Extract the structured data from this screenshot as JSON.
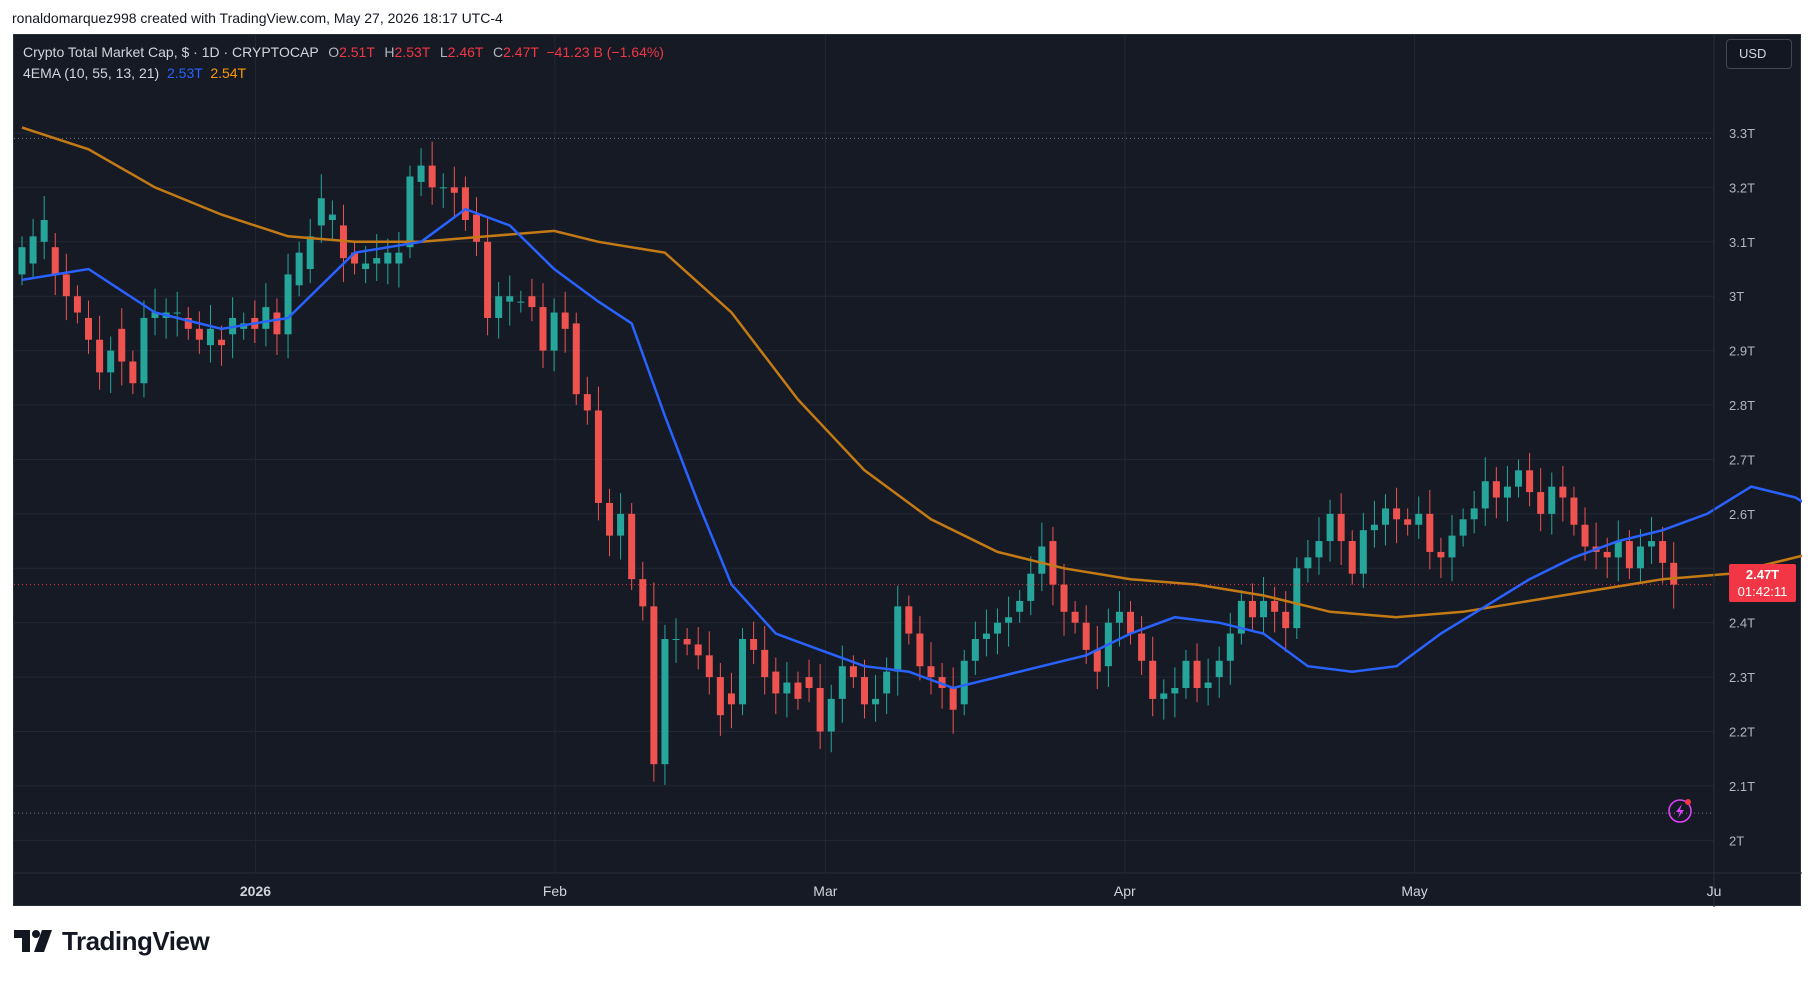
{
  "caption": "ronaldomarquez998 created with TradingView.com, May 27, 2026 18:17 UTC-4",
  "legend": {
    "symbol": "Crypto Total Market Cap, $ · 1D · CRYPTOCAP",
    "open_label": "O",
    "open": "2.51T",
    "high_label": "H",
    "high": "2.53T",
    "low_label": "L",
    "low": "2.46T",
    "close_label": "C",
    "close": "2.47T",
    "change": "−41.23 B (−1.64%)",
    "indicator": "4EMA (10, 55, 13, 21)",
    "ema_fast": "2.53T",
    "ema_slow": "2.54T"
  },
  "currency_button": "USD",
  "price_tag": {
    "value": "2.47T",
    "countdown": "01:42:11"
  },
  "brand": {
    "name": "TradingView"
  },
  "colors": {
    "background": "#161a25",
    "up": "#26a69a",
    "down": "#ef5350",
    "ema_fast": "#2962ff",
    "ema_slow": "#c47a14",
    "grid": "#232733"
  },
  "chart_data": {
    "type": "candlestick",
    "ylim": [
      1.94,
      3.48
    ],
    "y_ticks": [
      2.0,
      2.1,
      2.2,
      2.3,
      2.4,
      2.5,
      2.6,
      2.7,
      2.8,
      2.9,
      3.0,
      3.1,
      3.2,
      3.3
    ],
    "y_tick_labels": [
      "2T",
      "2.1T",
      "2.2T",
      "2.3T",
      "2.4T",
      "2.5T",
      "2.6T",
      "2.7T",
      "2.8T",
      "2.9T",
      "3T",
      "3.1T",
      "3.2T",
      "3.3T"
    ],
    "x_range": [
      "2025-12-07",
      "2026-06-01"
    ],
    "x_ticks": [
      {
        "date": "2026-01-01",
        "label": "2026"
      },
      {
        "date": "2026-02-01",
        "label": "Feb"
      },
      {
        "date": "2026-03-01",
        "label": "Mar"
      },
      {
        "date": "2026-04-01",
        "label": "Apr"
      },
      {
        "date": "2026-05-01",
        "label": "May"
      },
      {
        "date": "2026-06-01",
        "label": "Ju"
      }
    ],
    "last_price": 2.47,
    "hlines": [
      3.29,
      2.05
    ],
    "closes": [
      [
        3.04,
        3.09
      ],
      [
        3.06,
        3.11
      ],
      [
        3.1,
        3.14
      ],
      [
        3.09,
        3.04
      ],
      [
        3.04,
        3.0
      ],
      [
        3.0,
        2.97
      ],
      [
        2.96,
        2.92
      ],
      [
        2.92,
        2.86
      ],
      [
        2.86,
        2.9
      ],
      [
        2.94,
        2.88
      ],
      [
        2.88,
        2.84
      ],
      [
        2.84,
        2.96
      ],
      [
        2.96,
        2.97
      ],
      [
        2.96,
        2.97
      ],
      [
        2.97,
        2.97
      ],
      [
        2.96,
        2.94
      ],
      [
        2.94,
        2.92
      ],
      [
        2.91,
        2.94
      ],
      [
        2.92,
        2.91
      ],
      [
        2.93,
        2.96
      ],
      [
        2.94,
        2.95
      ],
      [
        2.96,
        2.94
      ],
      [
        2.94,
        2.98
      ],
      [
        2.97,
        2.93
      ],
      [
        2.93,
        3.04
      ],
      [
        3.02,
        3.08
      ],
      [
        3.05,
        3.11
      ],
      [
        3.13,
        3.18
      ],
      [
        3.14,
        3.15
      ],
      [
        3.13,
        3.07
      ],
      [
        3.08,
        3.06
      ],
      [
        3.05,
        3.06
      ],
      [
        3.06,
        3.07
      ],
      [
        3.06,
        3.08
      ],
      [
        3.06,
        3.08
      ],
      [
        3.09,
        3.22
      ],
      [
        3.21,
        3.24
      ],
      [
        3.24,
        3.2
      ],
      [
        3.2,
        3.2
      ],
      [
        3.2,
        3.19
      ],
      [
        3.2,
        3.14
      ],
      [
        3.15,
        3.1
      ],
      [
        3.1,
        2.96
      ],
      [
        2.96,
        3.0
      ],
      [
        2.99,
        3.0
      ],
      [
        2.99,
        2.99
      ],
      [
        3.0,
        2.98
      ],
      [
        2.98,
        2.9
      ],
      [
        2.9,
        2.97
      ],
      [
        2.97,
        2.94
      ],
      [
        2.95,
        2.82
      ],
      [
        2.82,
        2.79
      ],
      [
        2.79,
        2.62
      ],
      [
        2.62,
        2.56
      ],
      [
        2.56,
        2.6
      ],
      [
        2.6,
        2.48
      ],
      [
        2.48,
        2.43
      ],
      [
        2.43,
        2.14
      ],
      [
        2.14,
        2.37
      ],
      [
        2.37,
        2.37
      ],
      [
        2.37,
        2.36
      ],
      [
        2.36,
        2.34
      ],
      [
        2.34,
        2.3
      ],
      [
        2.3,
        2.23
      ],
      [
        2.27,
        2.25
      ],
      [
        2.25,
        2.37
      ],
      [
        2.37,
        2.35
      ],
      [
        2.35,
        2.3
      ],
      [
        2.31,
        2.27
      ],
      [
        2.27,
        2.29
      ],
      [
        2.29,
        2.26
      ],
      [
        2.3,
        2.28
      ],
      [
        2.28,
        2.2
      ],
      [
        2.2,
        2.26
      ],
      [
        2.26,
        2.32
      ],
      [
        2.32,
        2.3
      ],
      [
        2.3,
        2.25
      ],
      [
        2.25,
        2.26
      ],
      [
        2.27,
        2.31
      ],
      [
        2.31,
        2.43
      ],
      [
        2.43,
        2.38
      ],
      [
        2.38,
        2.32
      ],
      [
        2.32,
        2.3
      ],
      [
        2.3,
        2.28
      ],
      [
        2.28,
        2.24
      ],
      [
        2.25,
        2.33
      ],
      [
        2.33,
        2.37
      ],
      [
        2.37,
        2.38
      ],
      [
        2.38,
        2.4
      ],
      [
        2.4,
        2.41
      ],
      [
        2.42,
        2.44
      ],
      [
        2.44,
        2.49
      ],
      [
        2.49,
        2.54
      ],
      [
        2.55,
        2.47
      ],
      [
        2.47,
        2.42
      ],
      [
        2.42,
        2.4
      ],
      [
        2.4,
        2.35
      ],
      [
        2.35,
        2.31
      ],
      [
        2.32,
        2.4
      ],
      [
        2.4,
        2.42
      ],
      [
        2.42,
        2.38
      ],
      [
        2.38,
        2.33
      ],
      [
        2.33,
        2.26
      ],
      [
        2.26,
        2.27
      ],
      [
        2.27,
        2.28
      ],
      [
        2.28,
        2.33
      ],
      [
        2.33,
        2.28
      ],
      [
        2.28,
        2.29
      ],
      [
        2.3,
        2.33
      ],
      [
        2.33,
        2.38
      ],
      [
        2.38,
        2.44
      ],
      [
        2.44,
        2.41
      ],
      [
        2.41,
        2.44
      ],
      [
        2.44,
        2.42
      ],
      [
        2.42,
        2.39
      ],
      [
        2.39,
        2.5
      ],
      [
        2.5,
        2.52
      ],
      [
        2.52,
        2.55
      ],
      [
        2.55,
        2.6
      ],
      [
        2.6,
        2.55
      ],
      [
        2.55,
        2.49
      ],
      [
        2.49,
        2.57
      ],
      [
        2.57,
        2.58
      ],
      [
        2.58,
        2.61
      ],
      [
        2.61,
        2.59
      ],
      [
        2.59,
        2.58
      ],
      [
        2.58,
        2.6
      ],
      [
        2.6,
        2.53
      ],
      [
        2.53,
        2.52
      ],
      [
        2.52,
        2.56
      ],
      [
        2.56,
        2.59
      ],
      [
        2.59,
        2.61
      ],
      [
        2.61,
        2.66
      ],
      [
        2.66,
        2.63
      ],
      [
        2.63,
        2.65
      ],
      [
        2.65,
        2.68
      ],
      [
        2.68,
        2.64
      ],
      [
        2.64,
        2.6
      ],
      [
        2.6,
        2.65
      ],
      [
        2.65,
        2.63
      ],
      [
        2.63,
        2.58
      ],
      [
        2.58,
        2.54
      ],
      [
        2.54,
        2.53
      ],
      [
        2.53,
        2.52
      ],
      [
        2.52,
        2.55
      ],
      [
        2.55,
        2.5
      ],
      [
        2.5,
        2.54
      ],
      [
        2.54,
        2.55
      ],
      [
        2.55,
        2.51
      ],
      [
        2.51,
        2.47
      ]
    ],
    "ema_fast": [
      [
        0,
        3.03
      ],
      [
        6,
        3.05
      ],
      [
        12,
        2.97
      ],
      [
        18,
        2.94
      ],
      [
        24,
        2.96
      ],
      [
        30,
        3.08
      ],
      [
        36,
        3.1
      ],
      [
        40,
        3.16
      ],
      [
        44,
        3.13
      ],
      [
        48,
        3.05
      ],
      [
        52,
        2.99
      ],
      [
        55,
        2.95
      ],
      [
        58,
        2.78
      ],
      [
        61,
        2.62
      ],
      [
        64,
        2.47
      ],
      [
        68,
        2.38
      ],
      [
        72,
        2.35
      ],
      [
        76,
        2.32
      ],
      [
        80,
        2.31
      ],
      [
        84,
        2.28
      ],
      [
        88,
        2.3
      ],
      [
        92,
        2.32
      ],
      [
        96,
        2.34
      ],
      [
        100,
        2.38
      ],
      [
        104,
        2.41
      ],
      [
        108,
        2.4
      ],
      [
        112,
        2.38
      ],
      [
        116,
        2.32
      ],
      [
        120,
        2.31
      ],
      [
        124,
        2.32
      ],
      [
        128,
        2.38
      ],
      [
        132,
        2.43
      ],
      [
        136,
        2.48
      ],
      [
        140,
        2.52
      ],
      [
        144,
        2.55
      ],
      [
        148,
        2.57
      ],
      [
        152,
        2.6
      ],
      [
        156,
        2.65
      ],
      [
        160,
        2.63
      ],
      [
        164,
        2.58
      ],
      [
        168,
        2.56
      ],
      [
        172,
        2.55
      ],
      [
        176,
        2.54
      ]
    ],
    "ema_slow": [
      [
        0,
        3.31
      ],
      [
        6,
        3.27
      ],
      [
        12,
        3.2
      ],
      [
        18,
        3.15
      ],
      [
        24,
        3.11
      ],
      [
        30,
        3.1
      ],
      [
        36,
        3.1
      ],
      [
        42,
        3.11
      ],
      [
        48,
        3.12
      ],
      [
        52,
        3.1
      ],
      [
        58,
        3.08
      ],
      [
        64,
        2.97
      ],
      [
        70,
        2.81
      ],
      [
        76,
        2.68
      ],
      [
        82,
        2.59
      ],
      [
        88,
        2.53
      ],
      [
        94,
        2.5
      ],
      [
        100,
        2.48
      ],
      [
        106,
        2.47
      ],
      [
        112,
        2.45
      ],
      [
        118,
        2.42
      ],
      [
        124,
        2.41
      ],
      [
        130,
        2.42
      ],
      [
        136,
        2.44
      ],
      [
        142,
        2.46
      ],
      [
        148,
        2.48
      ],
      [
        154,
        2.49
      ],
      [
        160,
        2.52
      ],
      [
        164,
        2.54
      ],
      [
        168,
        2.54
      ],
      [
        172,
        2.55
      ],
      [
        176,
        2.55
      ]
    ]
  }
}
